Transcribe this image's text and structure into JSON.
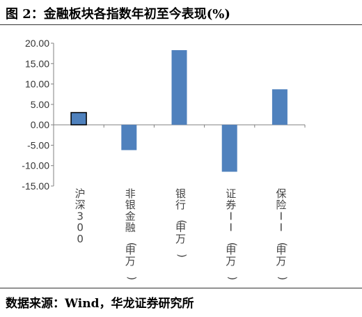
{
  "figure": {
    "title": "图 2：金融板块各指数年初至今表现(%)",
    "source": "数据来源：Wind，华龙证券研究所"
  },
  "chart_data": {
    "type": "bar",
    "title": "",
    "xlabel": "",
    "ylabel": "",
    "categories": [
      "沪深300",
      "非银金融(申万)",
      "银行(申万)",
      "证券II(申万)",
      "保险II(申万)"
    ],
    "values": [
      3.0,
      -6.2,
      18.3,
      -11.5,
      8.7
    ],
    "ylim": [
      -15,
      20
    ],
    "yticks": [
      "20.00",
      "15.00",
      "10.00",
      "5.00",
      "0.00",
      "-5.00",
      "-10.00",
      "-15.00"
    ],
    "ytick_values": [
      20,
      15,
      10,
      5,
      0,
      -5,
      -10,
      -15
    ],
    "grid": false,
    "legend": "none",
    "colors": {
      "bar": "#4F81BD",
      "highlight_outline": "#000000"
    },
    "highlight_index": 0
  }
}
